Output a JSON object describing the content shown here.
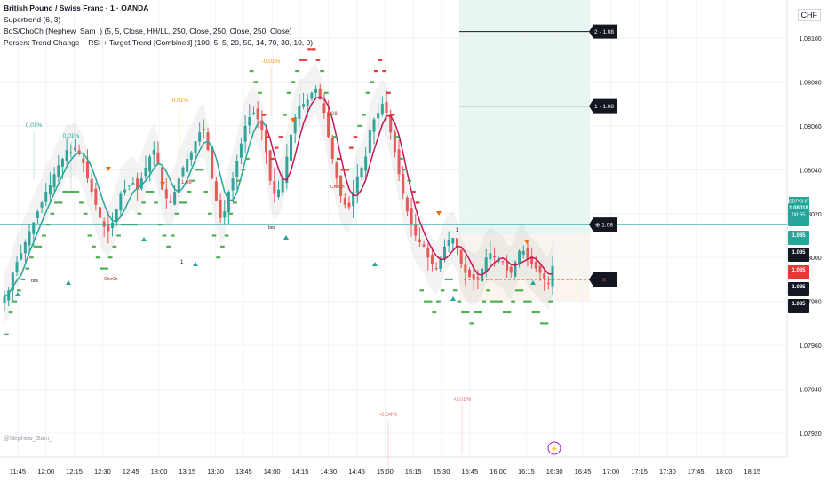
{
  "legend": {
    "title": "British Pound / Swiss Franc · 1 · OANDA",
    "line1": "Supertrend (6, 3)",
    "line2": "BoS/ChoCh (Nephew_Sam_) (5, 5, Close, HH/LL, 250, Close, 250, Close, 250, Close)",
    "line3": "Persent Trend Change + RSI + Target Trend [Combined] (100, 5, 5, 20, 50, 14, 70, 30, 10, 0)"
  },
  "currency": "CHF",
  "signature": "@Nephew_Sam_",
  "colors": {
    "up": "#26a69a",
    "down": "#ef5350",
    "supertrend_up": "#4caf50",
    "supertrend_down": "#e53935",
    "target_zone": "#e8f6f1",
    "grid": "#f0f3fa",
    "axis_text": "#131722",
    "price_line": "#26a69a",
    "stop_line": "#e53935"
  },
  "chart_data": {
    "type": "candlestick",
    "symbol": "GBPCHF",
    "timeframe": "1",
    "x_ticks": [
      "11:45",
      "12:00",
      "12:15",
      "12:30",
      "12:45",
      "13:00",
      "13:15",
      "13:30",
      "13:45",
      "14:00",
      "14:15",
      "14:30",
      "14:45",
      "15:00",
      "15:15",
      "15:30",
      "15:45",
      "16:00",
      "16:15",
      "16:30",
      "16:45",
      "17:00",
      "17:15",
      "17:30",
      "17:45",
      "18:00",
      "18:15"
    ],
    "y_ticks": [
      "1.08100",
      "1.08080",
      "1.08060",
      "1.08040",
      "1.08020",
      "1.08000",
      "1.07980",
      "1.07960",
      "1.07940",
      "1.07920"
    ],
    "ylim": [
      1.0791,
      1.0811
    ],
    "close_series": [
      1.07982,
      1.07985,
      1.07993,
      1.07998,
      1.08002,
      1.08007,
      1.08012,
      1.08016,
      1.08021,
      1.08025,
      1.0803,
      1.08033,
      1.08038,
      1.08042,
      1.08045,
      1.08049,
      1.08048,
      1.0805,
      1.08047,
      1.08043,
      1.08036,
      1.0803,
      1.08024,
      1.08018,
      1.08014,
      1.08012,
      1.08016,
      1.08022,
      1.08029,
      1.08031,
      1.08033,
      1.08034,
      1.08031,
      1.08036,
      1.08041,
      1.08046,
      1.08049,
      1.08043,
      1.08031,
      1.08027,
      1.08025,
      1.0803,
      1.08036,
      1.08041,
      1.08045,
      1.08048,
      1.08053,
      1.08057,
      1.08058,
      1.08049,
      1.08036,
      1.08026,
      1.08018,
      1.08021,
      1.0803,
      1.08036,
      1.08044,
      1.08052,
      1.0806,
      1.08064,
      1.08066,
      1.08063,
      1.08058,
      1.08048,
      1.08035,
      1.08029,
      1.08031,
      1.08036,
      1.08046,
      1.08056,
      1.08064,
      1.08069,
      1.0807,
      1.08072,
      1.08075,
      1.08077,
      1.08072,
      1.08066,
      1.08055,
      1.08045,
      1.08036,
      1.08028,
      1.08024,
      1.08023,
      1.0803,
      1.08037,
      1.08041,
      1.08046,
      1.08058,
      1.08063,
      1.08066,
      1.0807,
      1.08066,
      1.08057,
      1.08048,
      1.08038,
      1.08029,
      1.08021,
      1.08015,
      1.0801,
      1.08007,
      1.08005,
      1.08,
      1.07997,
      1.07995,
      1.07999,
      1.08005,
      1.08008,
      1.08009,
      1.08005,
      1.07997,
      1.07993,
      1.07991,
      1.0799,
      1.07991,
      1.07995,
      1.08,
      1.08002,
      1.08,
      1.07999,
      1.07998,
      1.07994,
      1.07993,
      1.07998,
      1.08003,
      1.08003,
      1.07999,
      1.07997,
      1.07995,
      1.07993,
      1.0799,
      1.07988,
      1.07996
    ],
    "annotations": [
      "0.01%",
      "0.01%",
      "-0.01%",
      "-0.01%",
      "-0.01%",
      "-0.04%",
      "0.01%",
      "1.08",
      "1.08",
      "bos",
      "bos",
      "ChoCh",
      "ChoCh",
      "1",
      "1",
      "X"
    ],
    "target_labels": [
      "2 · 1.08",
      "1 · 1.08",
      "⊕ 1.08",
      "X"
    ],
    "price_tags": [
      {
        "label": "GBPCHF",
        "value": "1.08018",
        "time": "00:55",
        "color": "#26a69a"
      },
      {
        "label": "",
        "value": "1.085",
        "time": "",
        "color": "#26a69a"
      },
      {
        "label": "",
        "value": "1.085",
        "time": "",
        "color": "#131722"
      },
      {
        "label": "",
        "value": "1.085",
        "time": "",
        "color": "#e53935"
      },
      {
        "label": "",
        "value": "1.085",
        "time": "",
        "color": "#131722"
      },
      {
        "label": "",
        "value": "1.085",
        "time": "",
        "color": "#131722"
      }
    ],
    "levels": {
      "target2": 1.08103,
      "target1": 1.08069,
      "entry": 1.08015,
      "stop": 1.0799
    },
    "grid": true
  }
}
